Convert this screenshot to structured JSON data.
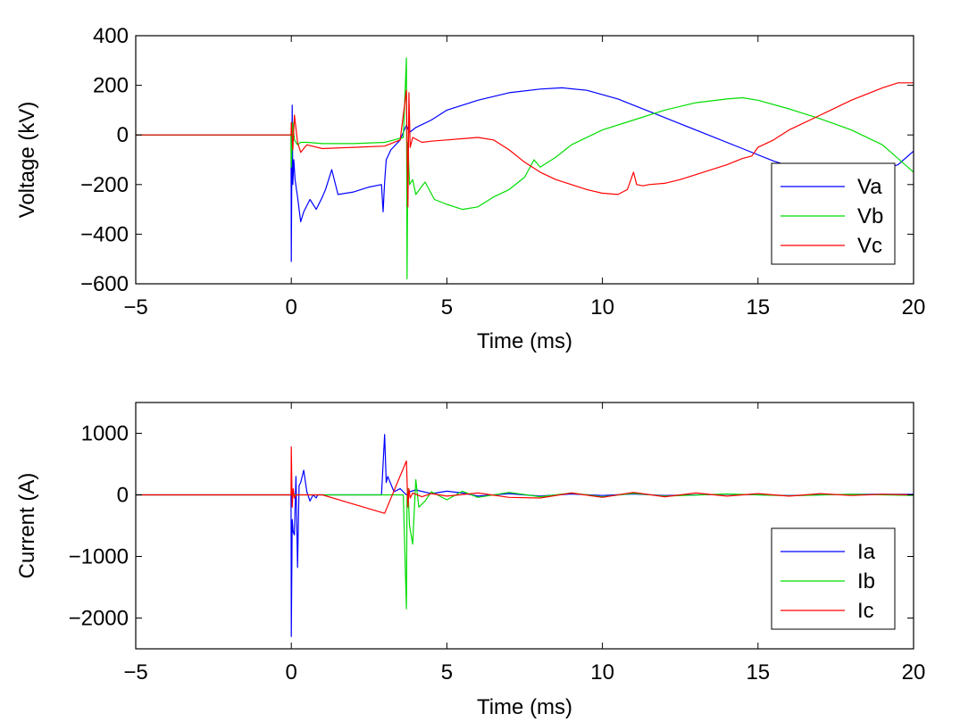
{
  "chart_data": [
    {
      "type": "line",
      "xlabel": "Time (ms)",
      "ylabel": "Voltage (kV)",
      "xlim": [
        -5,
        20
      ],
      "ylim": [
        -600,
        400
      ],
      "xticks": [
        -5,
        0,
        5,
        10,
        15,
        20
      ],
      "yticks": [
        400,
        200,
        0,
        -200,
        -400,
        -600
      ],
      "legend": "bottom-right",
      "series": [
        {
          "name": "Va",
          "color": "#0000ff",
          "x": [
            -5,
            -0.01,
            0,
            0.03,
            0.05,
            0.08,
            0.12,
            0.2,
            0.3,
            0.4,
            0.6,
            0.8,
            1.0,
            1.1,
            1.2,
            1.3,
            1.5,
            2.0,
            2.5,
            2.9,
            2.95,
            3.0,
            3.05,
            3.2,
            3.5,
            3.7,
            3.8,
            4.0,
            4.5,
            5,
            6,
            7,
            8,
            8.7,
            9.5,
            10.5,
            11.5,
            12.5,
            13.5,
            14.5,
            15.5,
            16.5,
            17.5,
            18.5,
            19.5,
            20
          ],
          "y": [
            0,
            0,
            -510,
            120,
            -200,
            -100,
            -180,
            -250,
            -350,
            -310,
            -260,
            -300,
            -250,
            -220,
            -180,
            -140,
            -240,
            -230,
            -210,
            -200,
            -310,
            -190,
            -100,
            -60,
            -20,
            40,
            10,
            30,
            60,
            100,
            140,
            170,
            185,
            190,
            180,
            145,
            95,
            45,
            -5,
            -55,
            -105,
            -145,
            -170,
            -160,
            -120,
            -65
          ]
        },
        {
          "name": "Vb",
          "color": "#00dd00",
          "x": [
            -5,
            -0.01,
            0,
            0.05,
            0.1,
            0.2,
            0.3,
            0.5,
            1.0,
            2.0,
            3.0,
            3.3,
            3.6,
            3.7,
            3.72,
            3.75,
            3.8,
            3.9,
            4.0,
            4.3,
            4.6,
            5,
            5.5,
            6,
            6.5,
            7,
            7.5,
            7.8,
            8,
            8.5,
            9,
            10,
            11,
            12,
            13,
            14,
            14.5,
            15,
            16,
            17,
            18,
            19,
            20
          ],
          "y": [
            0,
            0,
            -130,
            50,
            -20,
            -40,
            -30,
            -30,
            -35,
            -35,
            -30,
            -20,
            -10,
            310,
            -580,
            -30,
            -200,
            -180,
            -240,
            -190,
            -260,
            -280,
            -300,
            -290,
            -250,
            -220,
            -170,
            -100,
            -130,
            -90,
            -40,
            20,
            60,
            100,
            130,
            145,
            150,
            140,
            105,
            65,
            20,
            -40,
            -150
          ]
        },
        {
          "name": "Vc",
          "color": "#ff0000",
          "x": [
            -5,
            -0.01,
            0,
            0.05,
            0.1,
            0.2,
            0.3,
            0.5,
            1.0,
            2.0,
            3.0,
            3.5,
            3.7,
            3.75,
            3.78,
            3.82,
            3.9,
            4.2,
            4.5,
            5,
            5.5,
            6,
            6.5,
            7,
            7.5,
            8,
            8.5,
            9,
            9.5,
            10,
            10.5,
            10.8,
            11.0,
            11.1,
            11.3,
            11.5,
            12,
            12.5,
            13,
            14,
            14.5,
            14.8,
            15,
            15.5,
            16,
            17,
            18,
            19,
            19.5,
            20
          ],
          "y": [
            0,
            0,
            50,
            -60,
            80,
            -30,
            -70,
            -40,
            -55,
            -50,
            -45,
            -20,
            180,
            -290,
            170,
            -50,
            -10,
            -30,
            -25,
            -20,
            -15,
            -10,
            -20,
            -60,
            -110,
            -150,
            -180,
            -200,
            -220,
            -235,
            -240,
            -220,
            -150,
            -200,
            -205,
            -200,
            -195,
            -180,
            -160,
            -120,
            -95,
            -85,
            -50,
            -20,
            20,
            80,
            140,
            190,
            210,
            210
          ]
        }
      ]
    },
    {
      "type": "line",
      "xlabel": "Time (ms)",
      "ylabel": "Current (A)",
      "xlim": [
        -5,
        20
      ],
      "ylim": [
        -2500,
        1500
      ],
      "xticks": [
        -5,
        0,
        5,
        10,
        15,
        20
      ],
      "yticks": [
        1000,
        0,
        -1000,
        -2000
      ],
      "legend": "bottom-right",
      "series": [
        {
          "name": "Ia",
          "color": "#0000ff",
          "x": [
            -5,
            -0.01,
            0,
            0.03,
            0.06,
            0.1,
            0.15,
            0.2,
            0.25,
            0.3,
            0.4,
            0.5,
            0.6,
            0.7,
            0.8,
            0.85,
            2.9,
            3.0,
            3.05,
            3.1,
            3.3,
            3.5,
            3.7,
            3.8,
            4.0,
            4.5,
            5,
            5.5,
            6,
            7,
            8,
            9,
            10,
            11,
            12,
            14,
            16,
            18,
            20
          ],
          "y": [
            0,
            0,
            -2300,
            -400,
            -600,
            -650,
            300,
            -1180,
            150,
            200,
            400,
            50,
            -100,
            0,
            -50,
            0,
            0,
            980,
            200,
            300,
            50,
            100,
            0,
            50,
            80,
            20,
            60,
            30,
            -20,
            20,
            -20,
            15,
            -10,
            15,
            -10,
            10,
            -10,
            10,
            10
          ]
        },
        {
          "name": "Ib",
          "color": "#00dd00",
          "x": [
            -5,
            -0.01,
            0,
            3.6,
            3.7,
            3.72,
            3.75,
            3.8,
            3.9,
            4.0,
            4.1,
            4.3,
            4.5,
            5,
            5.5,
            6,
            7,
            8,
            9,
            10,
            11,
            12,
            14,
            16,
            18,
            20
          ],
          "y": [
            0,
            0,
            0,
            0,
            -1850,
            -50,
            100,
            -500,
            -800,
            250,
            -200,
            -100,
            50,
            -80,
            60,
            -40,
            40,
            -30,
            30,
            -30,
            25,
            -20,
            15,
            -15,
            10,
            -10
          ]
        },
        {
          "name": "Ic",
          "color": "#ff0000",
          "x": [
            -5,
            -0.01,
            0,
            0.03,
            0.06,
            0.1,
            0.15,
            0.2,
            0.3,
            0.5,
            1,
            3.0,
            3.7,
            3.75,
            3.78,
            3.82,
            3.9,
            4.2,
            4.5,
            5,
            6,
            7,
            8,
            9,
            10,
            11,
            12,
            13,
            14,
            15,
            16,
            17,
            18,
            19,
            20
          ],
          "y": [
            0,
            0,
            780,
            -200,
            100,
            -50,
            0,
            0,
            0,
            0,
            0,
            -300,
            550,
            -200,
            100,
            -50,
            30,
            -30,
            20,
            -20,
            30,
            -40,
            -50,
            30,
            -40,
            40,
            -30,
            30,
            -20,
            20,
            -20,
            20,
            -10,
            10,
            0
          ]
        }
      ]
    }
  ]
}
